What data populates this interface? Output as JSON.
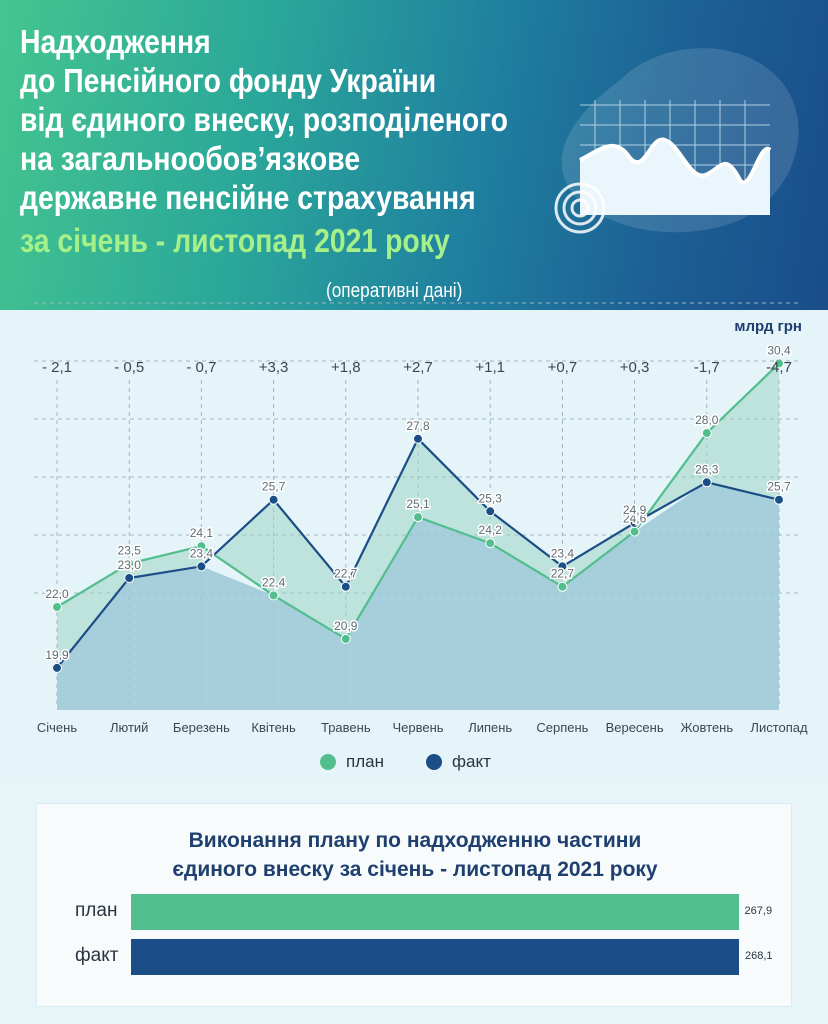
{
  "header": {
    "title_lines": [
      "Надходження",
      "до Пенсійного фонду України",
      "від єдиного внеску, розподіленого",
      "на загальнообов’язкове",
      "державне пенсійне страхування"
    ],
    "period": "за січень - листопад 2021 року",
    "note": "(оперативні дані)"
  },
  "colors": {
    "plan": "#52be8e",
    "fact": "#1b4d86",
    "title": "#1f3f6e",
    "period": "#a6f08a"
  },
  "chart_data": {
    "type": "line",
    "unit_label": "млрд грн",
    "categories": [
      "Січень",
      "Лютий",
      "Березень",
      "Квітень",
      "Травень",
      "Червень",
      "Липень",
      "Серпень",
      "Вересень",
      "Жовтень",
      "Листопад"
    ],
    "differences": [
      "- 2,1",
      "- 0,5",
      "- 0,7",
      "+3,3",
      "+1,8",
      "+2,7",
      "+1,1",
      "+0,7",
      "+0,3",
      "-1,7",
      "-4,7"
    ],
    "series": [
      {
        "name": "план",
        "values": [
          22.0,
          23.5,
          24.1,
          22.4,
          20.9,
          25.1,
          24.2,
          22.7,
          24.6,
          28.0,
          30.4
        ],
        "labels": [
          "22,0",
          "23,5",
          "24,1",
          "22,4",
          "20,9",
          "25,1",
          "24,2",
          "22,7",
          "24,6",
          "28,0",
          "30,4"
        ]
      },
      {
        "name": "факт",
        "values": [
          19.9,
          23.0,
          23.4,
          25.7,
          22.7,
          27.8,
          25.3,
          23.4,
          24.9,
          26.3,
          25.7
        ],
        "labels": [
          "19,9",
          "23,0",
          "23,4",
          "25,7",
          "22,7",
          "27,8",
          "25,3",
          "23,4",
          "24,9",
          "26,3",
          "25,7"
        ]
      }
    ],
    "ylim": [
      18,
      32
    ],
    "grid": true,
    "legend_position": "bottom-center"
  },
  "execution": {
    "title_lines": [
      "Виконання плану по надходженню частини",
      "єдиного внеску за січень - листопад 2021 року"
    ],
    "bars": [
      {
        "name": "план",
        "value": 267.9,
        "label": "267,9"
      },
      {
        "name": "факт",
        "value": 268.1,
        "label": "268,1"
      }
    ]
  }
}
